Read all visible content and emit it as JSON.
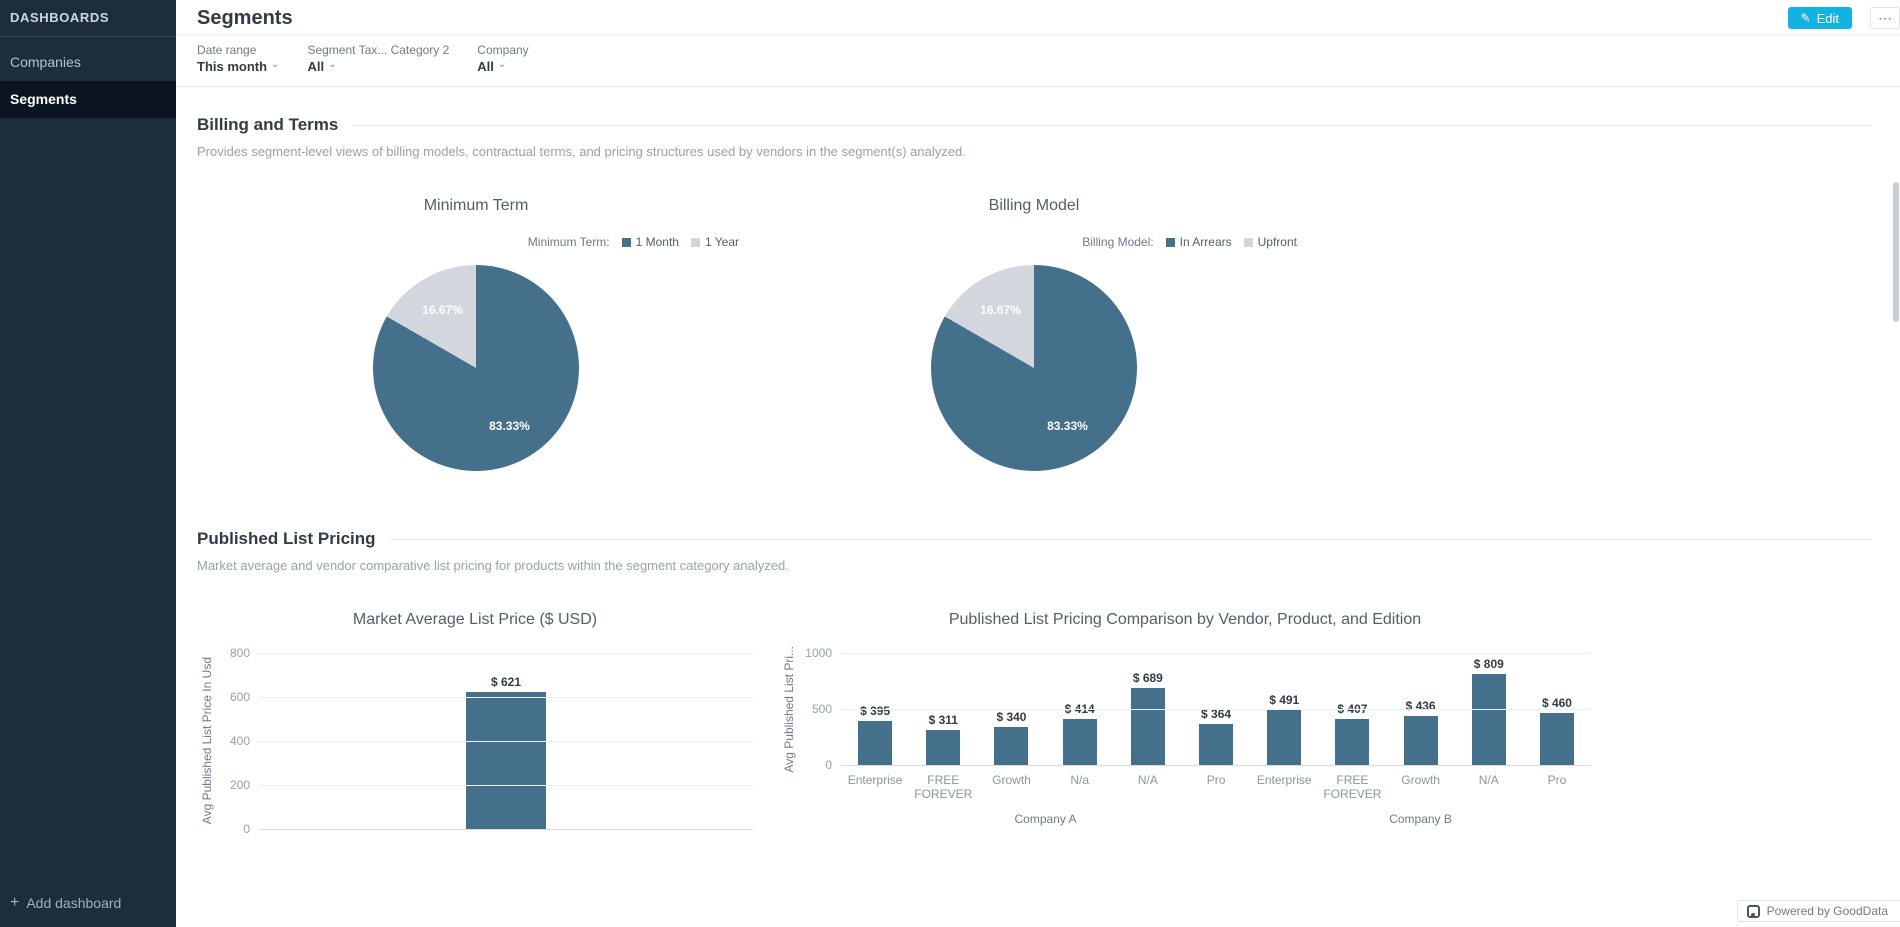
{
  "sidebar": {
    "title": "DASHBOARDS",
    "items": [
      {
        "label": "Companies"
      },
      {
        "label": "Segments"
      }
    ],
    "add_dashboard_label": "Add dashboard"
  },
  "header": {
    "title": "Segments",
    "edit_label": "Edit"
  },
  "icons": {
    "pencil": "✎",
    "caret": "⌄",
    "plus": "+",
    "more": "⋯"
  },
  "filters": [
    {
      "label": "Date range",
      "value": "This month"
    },
    {
      "label": "Segment Tax... Category 2",
      "value": "All"
    },
    {
      "label": "Company",
      "value": "All"
    }
  ],
  "sections": [
    {
      "title": "Billing and Terms",
      "description": "Provides segment-level views of billing models, contractual terms, and pricing structures used by vendors in the segment(s) analyzed."
    },
    {
      "title": "Published List Pricing",
      "description": "Market average and vendor comparative list pricing for products within the segment category analyzed."
    }
  ],
  "colors": {
    "primary": "#44708c",
    "secondary": "#d3d7dd",
    "accent": "#14b2e2"
  },
  "footer": {
    "powered_by": "Powered by GoodData"
  },
  "chart_data": [
    {
      "type": "pie",
      "title": "Minimum Term",
      "legend_title": "Minimum Term:",
      "labels": [
        "1 Month",
        "1 Year"
      ],
      "values": [
        83.33,
        16.67
      ],
      "value_labels": [
        "83.33%",
        "16.67%"
      ],
      "colors": [
        "#44708c",
        "#d3d7dd"
      ]
    },
    {
      "type": "pie",
      "title": "Billing Model",
      "legend_title": "Billing Model:",
      "labels": [
        "In Arrears",
        "Upfront"
      ],
      "values": [
        83.33,
        16.67
      ],
      "value_labels": [
        "83.33%",
        "16.67%"
      ],
      "colors": [
        "#44708c",
        "#d3d7dd"
      ]
    },
    {
      "type": "bar",
      "title": "Market Average List Price ($ USD)",
      "ylabel": "Avg Published List Price In Usd",
      "categories": [
        ""
      ],
      "values": [
        621
      ],
      "value_labels": [
        "$ 621"
      ],
      "ylim": [
        0,
        800
      ],
      "yticks": [
        0,
        200,
        400,
        600,
        800
      ]
    },
    {
      "type": "bar",
      "title": "Published List Pricing Comparison by Vendor, Product, and Edition",
      "ylabel": "Avg Published List Pri...",
      "categories": [
        "Enterprise",
        "FREE FOREVER",
        "Growth",
        "N/a",
        "N/A",
        "Pro",
        "Enterprise",
        "FREE FOREVER",
        "Growth",
        "N/A",
        "Pro"
      ],
      "values": [
        395,
        311,
        340,
        414,
        689,
        364,
        491,
        407,
        436,
        809,
        460
      ],
      "value_labels": [
        "$ 395",
        "$ 311",
        "$ 340",
        "$ 414",
        "$ 689",
        "$ 364",
        "$ 491",
        "$ 407",
        "$ 436",
        "$ 809",
        "$ 460"
      ],
      "groups": [
        {
          "label": "Company A",
          "span": 6
        },
        {
          "label": "Company B",
          "span": 5
        }
      ],
      "ylim": [
        0,
        1000
      ],
      "yticks": [
        0,
        500,
        1000
      ]
    }
  ]
}
